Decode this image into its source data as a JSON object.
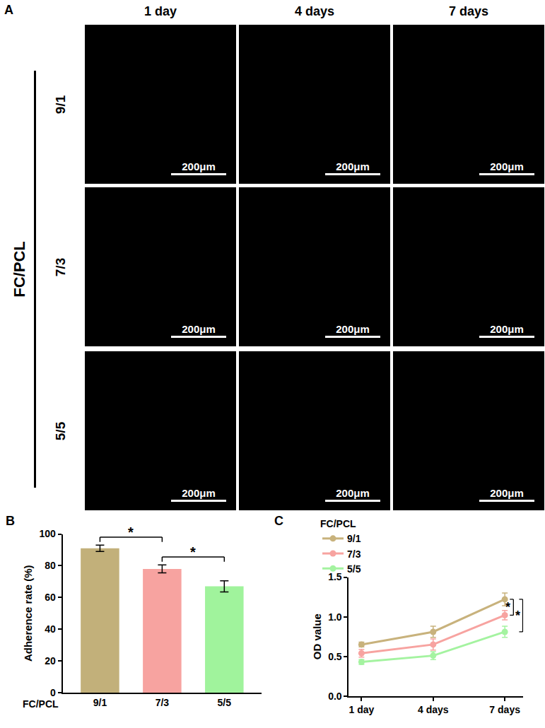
{
  "panel_a": {
    "label": "A",
    "group_label": "FC/PCL",
    "columns": [
      "1 day",
      "4 days",
      "7 days"
    ],
    "rows": [
      "9/1",
      "7/3",
      "5/5"
    ],
    "scale_bar": "200μm"
  },
  "chart_data": [
    {
      "panel": "B",
      "type": "bar",
      "categories": [
        "9/1",
        "7/3",
        "5/5"
      ],
      "x_label": "FC/PCL",
      "values": [
        91,
        78,
        67
      ],
      "errors": [
        2,
        2.5,
        3.5
      ],
      "colors": [
        "#c2b07a",
        "#f7a3a0",
        "#a0f39c"
      ],
      "y_label": "Adherence rate (%)",
      "ylim": [
        0,
        100
      ],
      "yticks": [
        0,
        20,
        40,
        60,
        80,
        100
      ],
      "significance": [
        {
          "from": "9/1",
          "to": "7/3",
          "label": "*"
        },
        {
          "from": "7/3",
          "to": "5/5",
          "label": "*"
        }
      ]
    },
    {
      "panel": "C",
      "type": "line",
      "categories": [
        "1 day",
        "4 days",
        "7 days"
      ],
      "legend_title": "FC/PCL",
      "legend": "upper left",
      "marker": "circle",
      "line_style": "solid",
      "series": [
        {
          "name": "9/1",
          "color": "#c8b27c",
          "values": [
            0.65,
            0.81,
            1.22
          ],
          "errors": [
            0.03,
            0.07,
            0.08
          ]
        },
        {
          "name": "7/3",
          "color": "#f7a3a0",
          "values": [
            0.54,
            0.65,
            1.02
          ],
          "errors": [
            0.05,
            0.07,
            0.06
          ]
        },
        {
          "name": "5/5",
          "color": "#a4f3a0",
          "values": [
            0.43,
            0.51,
            0.81
          ],
          "errors": [
            0.03,
            0.05,
            0.07
          ]
        }
      ],
      "y_label": "OD value",
      "ylim": [
        0,
        1.5
      ],
      "yticks": [
        {
          "value": 0,
          "label": "0.0"
        },
        {
          "value": 0.5,
          "label": "0.5"
        },
        {
          "value": 1,
          "label": "1.0"
        },
        {
          "value": 1.5,
          "label": "1.5"
        }
      ],
      "significance": [
        {
          "from": "9/1",
          "to": "7/3",
          "at": "7 days",
          "label": "*"
        },
        {
          "from": "9/1",
          "to": "5/5",
          "at": "7 days",
          "label": "*"
        }
      ]
    }
  ]
}
